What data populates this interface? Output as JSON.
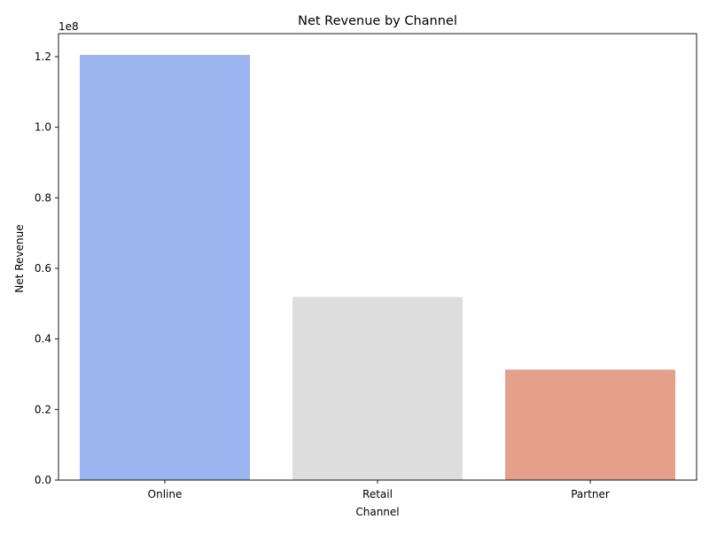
{
  "chart_data": {
    "type": "bar",
    "title": "Net Revenue by Channel",
    "xlabel": "Channel",
    "ylabel": "Net Revenue",
    "offset_label": "1e8",
    "categories": [
      "Online",
      "Retail",
      "Partner"
    ],
    "values": [
      120500000,
      51900000,
      31300000
    ],
    "colors": [
      "#9ab5f0",
      "#dddddd",
      "#e4a08a"
    ],
    "ylim": [
      0,
      126525000
    ],
    "yticks": [
      0,
      20000000,
      40000000,
      60000000,
      80000000,
      100000000,
      120000000
    ],
    "ytick_labels": [
      "0.0",
      "0.2",
      "0.4",
      "0.6",
      "0.8",
      "1.0",
      "1.2"
    ],
    "grid": false,
    "legend": "none"
  }
}
